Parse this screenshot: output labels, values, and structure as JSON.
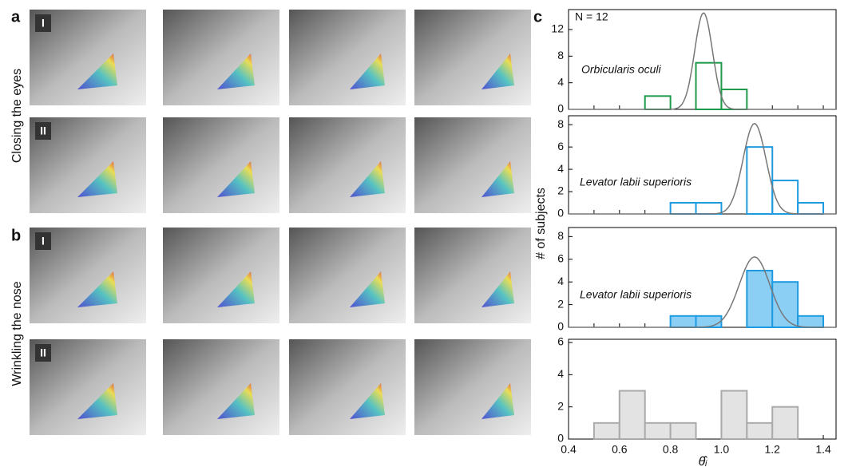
{
  "panels": {
    "a": "a",
    "b": "b",
    "c": "c"
  },
  "rows": [
    {
      "group": "Closing the eyes",
      "labels": [
        "I",
        "II"
      ]
    },
    {
      "group": "Wrinkling the nose",
      "labels": [
        "I",
        "II"
      ]
    }
  ],
  "shared": {
    "ylabel": "# of subjects",
    "xlabel": "θ̂ᵢ"
  },
  "chart_data": [
    {
      "type": "histogram",
      "annotation": "N = 12",
      "label": "Orbicularis oculi",
      "color": "#1f9a4a",
      "filled": false,
      "bins": [
        0.7,
        0.8,
        0.9,
        1.0,
        1.1
      ],
      "counts": [
        2,
        0,
        7,
        3
      ],
      "fit": {
        "mean": 0.93,
        "sd": 0.035,
        "peak": 14.5
      },
      "xlim": [
        0.4,
        1.45
      ],
      "xticks": [
        0.4,
        0.5,
        0.6,
        0.7,
        0.8,
        0.9,
        1.0,
        1.1,
        1.2,
        1.3,
        1.4
      ],
      "ylim": [
        0,
        15
      ],
      "yticks": [
        0,
        4,
        8,
        12
      ]
    },
    {
      "type": "histogram",
      "label": "Levator labii superioris",
      "color": "#1e9be0",
      "filled": false,
      "bins": [
        0.8,
        0.9,
        1.0,
        1.1,
        1.2,
        1.3,
        1.4
      ],
      "counts": [
        1,
        1,
        0,
        6,
        3,
        1
      ],
      "fit": {
        "mean": 1.13,
        "sd": 0.045,
        "peak": 8.1
      },
      "xlim": [
        0.4,
        1.45
      ],
      "xticks": [
        0.4,
        0.5,
        0.6,
        0.7,
        0.8,
        0.9,
        1.0,
        1.1,
        1.2,
        1.3,
        1.4
      ],
      "ylim": [
        0,
        8.8
      ],
      "yticks": [
        0,
        2,
        4,
        6,
        8
      ]
    },
    {
      "type": "histogram",
      "label": "Levator labii superioris",
      "color": "#1e9be0",
      "fillcolor": "#8ccff5",
      "filled": true,
      "bins": [
        0.8,
        0.9,
        1.0,
        1.1,
        1.2,
        1.3,
        1.4
      ],
      "counts": [
        1,
        1,
        0,
        5,
        4,
        1
      ],
      "fit": {
        "mean": 1.13,
        "sd": 0.06,
        "peak": 6.2
      },
      "xlim": [
        0.4,
        1.45
      ],
      "xticks": [
        0.4,
        0.5,
        0.6,
        0.7,
        0.8,
        0.9,
        1.0,
        1.1,
        1.2,
        1.3,
        1.4
      ],
      "ylim": [
        0,
        8.8
      ],
      "yticks": [
        0,
        2,
        4,
        6,
        8
      ]
    },
    {
      "type": "histogram",
      "color": "#aaaaaa",
      "fillcolor": "#e3e3e3",
      "filled": true,
      "bins": [
        0.5,
        0.6,
        0.7,
        0.8,
        0.9,
        1.0,
        1.1,
        1.2,
        1.3
      ],
      "counts": [
        1,
        3,
        1,
        1,
        0,
        3,
        1,
        2
      ],
      "xlim": [
        0.4,
        1.45
      ],
      "xticks": [
        0.4,
        {
          "value": 0.6,
          "label": "0.6"
        },
        0.8,
        {
          "value": 1.0,
          "label": "1.0"
        },
        1.2,
        1.4
      ],
      "ylim": [
        0,
        6.2
      ],
      "yticks": [
        0,
        2,
        4,
        6
      ]
    }
  ]
}
